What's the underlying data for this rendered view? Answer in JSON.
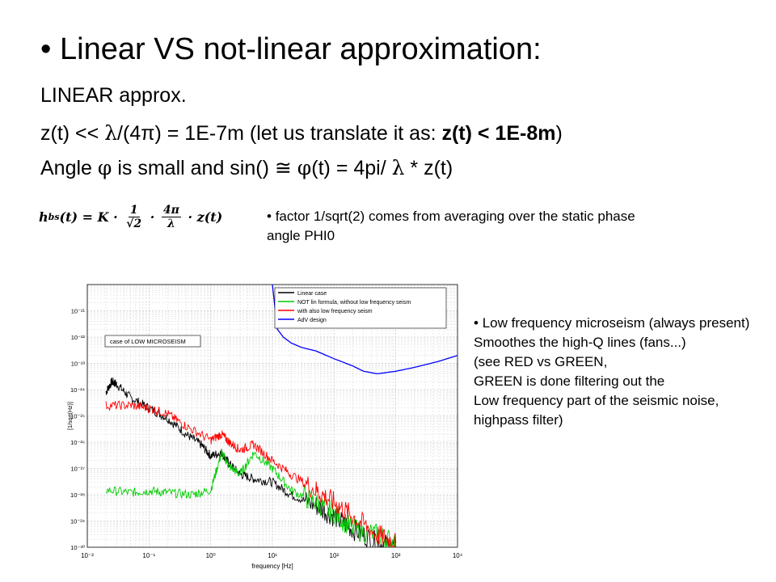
{
  "slide": {
    "title": "Linear  VS not-linear approximation:",
    "line1": "LINEAR approx.",
    "line2_a": "z(t) << ",
    "line2_lambda": "λ",
    "line2_b": "/(4π) = 1E-7m (let us translate it as:  ",
    "line2_bold": "z(t) < 1E-8m",
    "line2_c": ")",
    "line3_a": "Angle ",
    "line3_phi": "φ",
    "line3_b": " is small and    sin() ",
    "line3_approx": "≅",
    "line3_phi2": "φ",
    "line3_c": "(t) = 4pi/ ",
    "line3_lambda": "λ",
    "line3_d": " * z(t)",
    "formula": {
      "lhs": "h",
      "sub": "bs",
      "arg": "(t) = K · ",
      "f1_num": "1",
      "f1_den": "√2",
      "dot": " · ",
      "f2_num": "4π",
      "f2_den": "λ",
      "rhs": " · z(t)"
    },
    "note1": "factor 1/sqrt(2) comes from averaging over the static phase angle PHI0",
    "note2_lines": [
      "Low frequency microseism (always present)  Smoothes the high-Q lines (fans...)",
      "(see RED vs GREEN,",
      "GREEN is done filtering out the",
      "Low frequency part of the seismic noise, highpass filter)"
    ]
  },
  "chart_data": {
    "type": "line",
    "title": "",
    "xlabel": "frequency [Hz]",
    "ylabel": "[1/sqrt(Hz)]",
    "xscale": "log",
    "yscale": "log",
    "xlim": [
      0.01,
      10000
    ],
    "ylim": [
      1e-30,
      1e-20
    ],
    "grid": true,
    "x_tick_labels": [
      "10⁻²",
      "10⁻¹",
      "10⁰",
      "10¹",
      "10²",
      "10³",
      "10⁴"
    ],
    "y_tick_labels": [
      "10⁻²¹",
      "10⁻²²",
      "10⁻²³",
      "10⁻²⁴",
      "10⁻²⁵",
      "10⁻²⁶",
      "10⁻²⁷",
      "10⁻²⁸",
      "10⁻²⁹",
      "10⁻³⁰"
    ],
    "annotation": "case of LOW MICROSEISM",
    "legend_position": "top-right",
    "series": [
      {
        "name": "Linear case",
        "color": "#000000",
        "x": [
          0.02,
          0.025,
          0.03,
          0.05,
          0.1,
          0.2,
          0.4,
          0.7,
          1,
          1.5,
          2,
          3,
          5,
          10,
          20,
          50,
          100,
          200,
          500,
          1000
        ],
        "y": [
          8e-25,
          2e-24,
          1.6e-24,
          5e-25,
          2e-25,
          8e-26,
          2e-26,
          8e-27,
          3e-27,
          4e-27,
          1.5e-27,
          6e-28,
          4e-28,
          3e-28,
          1e-28,
          4e-29,
          1.5e-29,
          5e-30,
          1.5e-30,
          1e-30
        ]
      },
      {
        "name": "NOT lin formula, without low frequency seism",
        "color": "#00cc00",
        "x": [
          0.02,
          0.05,
          0.1,
          0.2,
          0.5,
          1,
          1.5,
          2,
          3,
          5,
          10,
          20,
          50,
          100,
          200,
          500,
          1000
        ],
        "y": [
          1.5e-28,
          1.2e-28,
          1.4e-28,
          1.2e-28,
          1e-28,
          1.5e-28,
          4e-27,
          1.2e-27,
          6e-28,
          4e-27,
          1e-27,
          1.5e-28,
          5e-29,
          2e-29,
          5e-30,
          3e-30,
          1.5e-30
        ]
      },
      {
        "name": "with also low frequency seism",
        "color": "#ff0000",
        "x": [
          0.02,
          0.05,
          0.1,
          0.2,
          0.4,
          1,
          1.5,
          2,
          3,
          5,
          10,
          20,
          50,
          100,
          200,
          500,
          1000
        ],
        "y": [
          2.5e-25,
          2.5e-25,
          2e-25,
          1.2e-25,
          4e-26,
          1.2e-26,
          2e-26,
          1e-26,
          5e-27,
          8e-27,
          2e-27,
          6e-28,
          1.5e-28,
          5e-29,
          1.5e-29,
          3e-30,
          1.5e-30
        ]
      },
      {
        "name": "AdV design",
        "color": "#0000ff",
        "x": [
          10,
          12,
          15,
          20,
          30,
          50,
          100,
          200,
          300,
          500,
          1000,
          2000,
          5000,
          10000
        ],
        "y": [
          1e-20,
          2e-22,
          1e-22,
          6e-23,
          4e-23,
          3e-23,
          1.5e-23,
          8e-24,
          5e-24,
          4e-24,
          5e-24,
          7e-24,
          1.2e-23,
          2e-23
        ]
      }
    ]
  }
}
